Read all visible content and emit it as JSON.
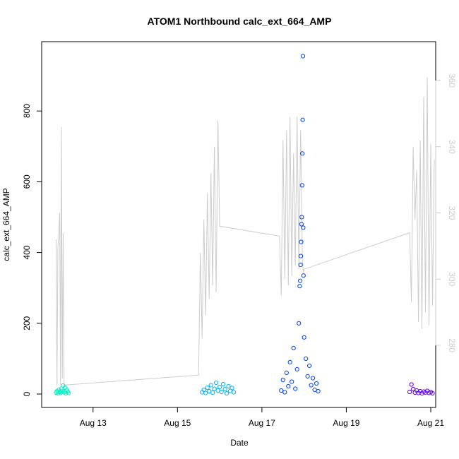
{
  "chart_data": {
    "type": "scatter",
    "title": "ATOM1 Northbound calc_ext_664_AMP",
    "xlabel": "Date",
    "ylabel": "calc_ext_664_AMP",
    "xlim": [
      "2024-08-12T00:00",
      "2024-08-21T00:00"
    ],
    "ylim": [
      0,
      960
    ],
    "x_ticks": [
      {
        "value": "2024-08-13T00:00",
        "label": "Aug 13"
      },
      {
        "value": "2024-08-15T00:00",
        "label": "Aug 15"
      },
      {
        "value": "2024-08-17T00:00",
        "label": "Aug 17"
      },
      {
        "value": "2024-08-19T00:00",
        "label": "Aug 19"
      },
      {
        "value": "2024-08-21T00:00",
        "label": "Aug 21"
      }
    ],
    "y_ticks": [
      0,
      200,
      400,
      600,
      800
    ],
    "y2lim": [
      262,
      366
    ],
    "y2_ticks": [
      280,
      300,
      320,
      340,
      360
    ],
    "y2_color": "#cccccc",
    "grid": false,
    "series": [
      {
        "color": "#00f0c0",
        "marker": "open-circle",
        "points": [
          [
            "2024-08-12T03:00",
            4
          ],
          [
            "2024-08-12T03:30",
            8
          ],
          [
            "2024-08-12T04:00",
            2
          ],
          [
            "2024-08-12T04:30",
            12
          ],
          [
            "2024-08-12T05:00",
            6
          ],
          [
            "2024-08-12T05:30",
            3
          ],
          [
            "2024-08-12T06:00",
            15
          ],
          [
            "2024-08-12T06:30",
            9
          ],
          [
            "2024-08-12T07:00",
            24
          ],
          [
            "2024-08-12T07:30",
            5
          ],
          [
            "2024-08-12T08:00",
            18
          ],
          [
            "2024-08-12T08:30",
            2
          ],
          [
            "2024-08-12T09:00",
            11
          ],
          [
            "2024-08-12T09:30",
            7
          ],
          [
            "2024-08-12T10:00",
            3
          ]
        ]
      },
      {
        "color": "#00b4f0",
        "marker": "open-circle",
        "points": [
          [
            "2024-08-15T14:00",
            5
          ],
          [
            "2024-08-15T15:00",
            12
          ],
          [
            "2024-08-15T16:00",
            3
          ],
          [
            "2024-08-15T17:00",
            18
          ],
          [
            "2024-08-15T18:00",
            8
          ],
          [
            "2024-08-15T19:00",
            25
          ],
          [
            "2024-08-15T20:00",
            4
          ],
          [
            "2024-08-15T21:00",
            15
          ],
          [
            "2024-08-15T22:00",
            32
          ],
          [
            "2024-08-15T23:00",
            10
          ],
          [
            "2024-08-16T00:00",
            20
          ],
          [
            "2024-08-16T01:00",
            6
          ],
          [
            "2024-08-16T02:00",
            28
          ],
          [
            "2024-08-16T03:00",
            14
          ],
          [
            "2024-08-16T04:00",
            2
          ],
          [
            "2024-08-16T05:00",
            22
          ],
          [
            "2024-08-16T06:00",
            9
          ],
          [
            "2024-08-16T07:00",
            17
          ],
          [
            "2024-08-16T08:00",
            5
          ]
        ]
      },
      {
        "color": "#0040f0",
        "marker": "open-circle",
        "points": [
          [
            "2024-08-17T11:00",
            10
          ],
          [
            "2024-08-17T12:00",
            40
          ],
          [
            "2024-08-17T13:00",
            5
          ],
          [
            "2024-08-17T14:00",
            60
          ],
          [
            "2024-08-17T15:00",
            22
          ],
          [
            "2024-08-17T16:00",
            90
          ],
          [
            "2024-08-17T17:00",
            35
          ],
          [
            "2024-08-17T18:00",
            130
          ],
          [
            "2024-08-17T19:00",
            15
          ],
          [
            "2024-08-17T20:00",
            70
          ],
          [
            "2024-08-17T21:00",
            200
          ],
          [
            "2024-08-17T21:30",
            305
          ],
          [
            "2024-08-17T21:45",
            320
          ],
          [
            "2024-08-17T22:00",
            365
          ],
          [
            "2024-08-17T22:10",
            390
          ],
          [
            "2024-08-17T22:20",
            430
          ],
          [
            "2024-08-17T22:30",
            480
          ],
          [
            "2024-08-17T22:40",
            500
          ],
          [
            "2024-08-17T22:50",
            590
          ],
          [
            "2024-08-17T23:00",
            680
          ],
          [
            "2024-08-17T23:10",
            775
          ],
          [
            "2024-08-17T23:20",
            955
          ],
          [
            "2024-08-17T23:30",
            470
          ],
          [
            "2024-08-17T23:40",
            335
          ],
          [
            "2024-08-18T00:00",
            160
          ],
          [
            "2024-08-18T01:00",
            100
          ],
          [
            "2024-08-18T02:00",
            50
          ],
          [
            "2024-08-18T03:00",
            80
          ],
          [
            "2024-08-18T04:00",
            25
          ],
          [
            "2024-08-18T05:00",
            45
          ],
          [
            "2024-08-18T06:00",
            12
          ],
          [
            "2024-08-18T07:00",
            30
          ],
          [
            "2024-08-18T08:00",
            8
          ]
        ]
      },
      {
        "color": "#5a00e6",
        "marker": "open-circle",
        "points": [
          [
            "2024-08-20T12:00",
            6
          ],
          [
            "2024-08-20T13:00",
            27
          ],
          [
            "2024-08-20T14:00",
            14
          ],
          [
            "2024-08-20T15:00",
            4
          ],
          [
            "2024-08-20T16:00",
            10
          ],
          [
            "2024-08-20T17:00",
            3
          ],
          [
            "2024-08-20T18:00",
            8
          ],
          [
            "2024-08-20T19:00",
            2
          ],
          [
            "2024-08-20T20:00",
            7
          ],
          [
            "2024-08-20T21:00",
            4
          ],
          [
            "2024-08-20T22:00",
            9
          ],
          [
            "2024-08-20T23:00",
            3
          ],
          [
            "2024-08-21T00:00",
            6
          ],
          [
            "2024-08-21T01:00",
            2
          ]
        ]
      }
    ],
    "secondary_series": {
      "type": "line",
      "axis": "right",
      "color": "#cccccc",
      "points": [
        [
          "2024-08-12T03:00",
          312
        ],
        [
          "2024-08-12T03:30",
          268
        ],
        [
          "2024-08-12T04:00",
          310
        ],
        [
          "2024-08-12T04:30",
          313
        ],
        [
          "2024-08-12T05:00",
          320
        ],
        [
          "2024-08-12T05:30",
          268
        ],
        [
          "2024-08-12T06:00",
          346
        ],
        [
          "2024-08-12T06:30",
          270
        ],
        [
          "2024-08-12T07:00",
          314
        ],
        [
          "2024-08-12T07:30",
          268
        ],
        [
          "2024-08-12T08:00",
          268
        ],
        [
          "2024-08-15T12:00",
          271
        ],
        [
          "2024-08-15T13:00",
          308
        ],
        [
          "2024-08-15T14:00",
          282
        ],
        [
          "2024-08-15T15:00",
          318
        ],
        [
          "2024-08-15T16:00",
          289
        ],
        [
          "2024-08-15T17:00",
          326
        ],
        [
          "2024-08-15T18:00",
          294
        ],
        [
          "2024-08-15T19:00",
          332
        ],
        [
          "2024-08-15T20:00",
          298
        ],
        [
          "2024-08-15T21:00",
          340
        ],
        [
          "2024-08-15T22:00",
          296
        ],
        [
          "2024-08-15T23:00",
          348
        ],
        [
          "2024-08-16T00:00",
          316
        ],
        [
          "2024-08-17T10:00",
          313
        ],
        [
          "2024-08-17T11:00",
          295
        ],
        [
          "2024-08-17T12:00",
          342
        ],
        [
          "2024-08-17T13:00",
          300
        ],
        [
          "2024-08-17T14:00",
          345
        ],
        [
          "2024-08-17T15:00",
          298
        ],
        [
          "2024-08-17T16:00",
          349
        ],
        [
          "2024-08-17T17:00",
          301
        ],
        [
          "2024-08-17T18:00",
          338
        ],
        [
          "2024-08-17T19:00",
          304
        ],
        [
          "2024-08-17T20:00",
          349
        ],
        [
          "2024-08-17T21:00",
          303
        ],
        [
          "2024-08-17T22:00",
          345
        ],
        [
          "2024-08-17T23:00",
          306
        ],
        [
          "2024-08-17T23:30",
          302
        ],
        [
          "2024-08-18T00:00",
          303
        ],
        [
          "2024-08-20T12:00",
          314
        ],
        [
          "2024-08-20T13:00",
          293
        ],
        [
          "2024-08-20T14:00",
          340
        ],
        [
          "2024-08-20T15:00",
          318
        ],
        [
          "2024-08-20T16:00",
          333
        ],
        [
          "2024-08-20T17:00",
          287
        ],
        [
          "2024-08-20T18:00",
          342
        ],
        [
          "2024-08-20T19:00",
          285
        ],
        [
          "2024-08-20T20:00",
          355
        ],
        [
          "2024-08-20T21:00",
          290
        ],
        [
          "2024-08-20T22:00",
          361
        ],
        [
          "2024-08-20T23:00",
          286
        ],
        [
          "2024-08-21T00:00",
          341
        ],
        [
          "2024-08-21T01:00",
          292
        ],
        [
          "2024-08-21T02:00",
          336
        ]
      ]
    }
  }
}
